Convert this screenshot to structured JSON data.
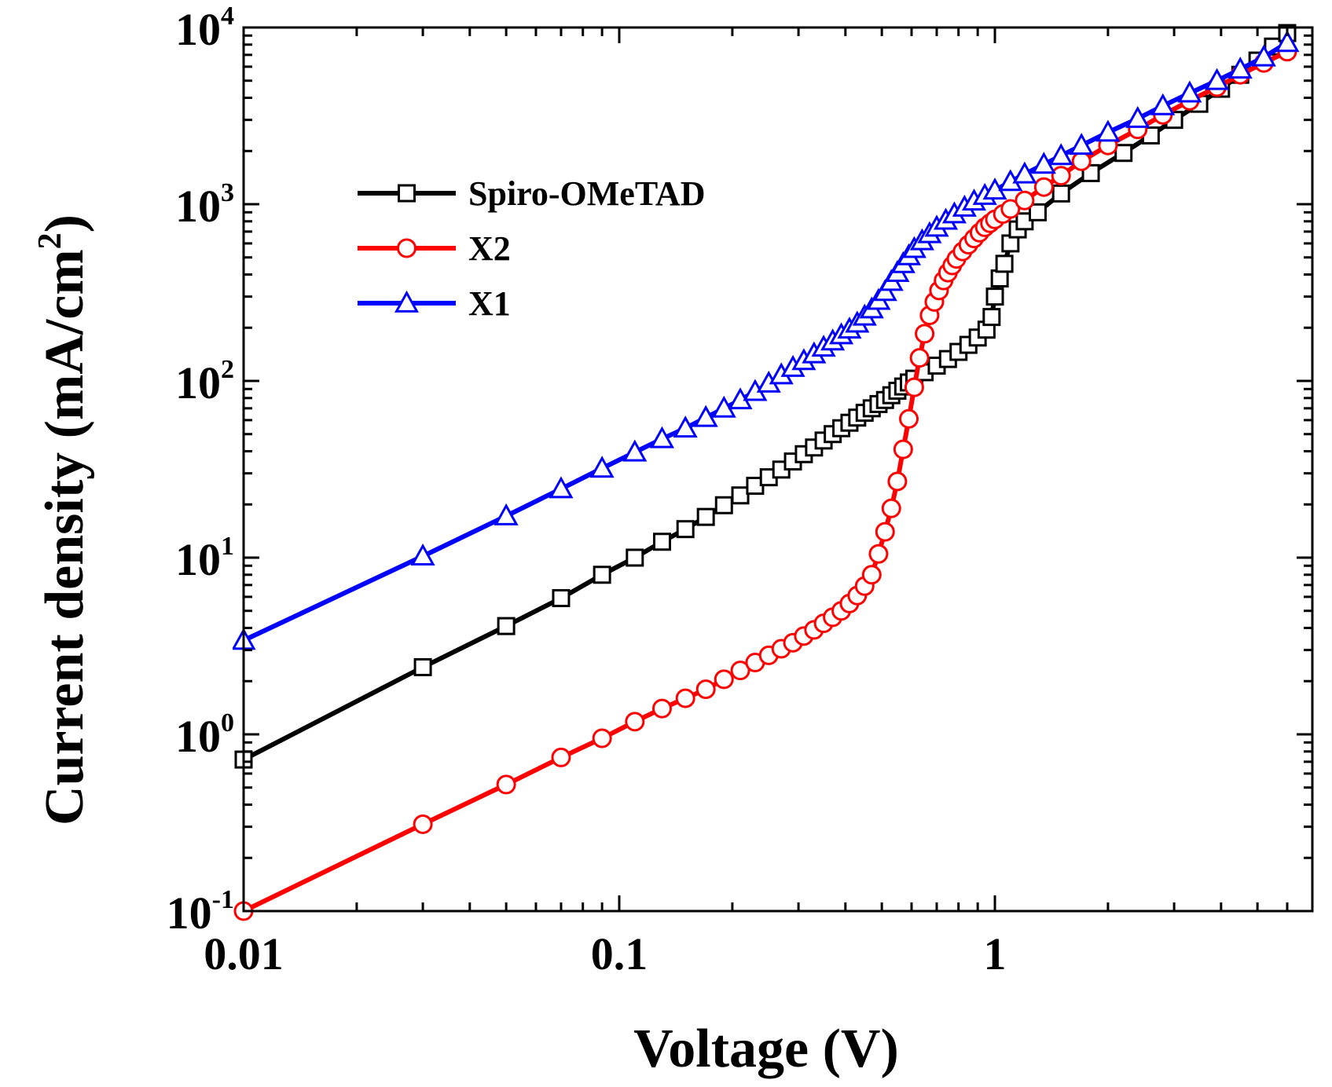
{
  "chart_data": {
    "type": "line",
    "title": "",
    "xlabel": "Voltage (V)",
    "ylabel": "Current density (mA/cm",
    "ylabel_sup": "2",
    "ylabel_end": ")",
    "xscale": "log",
    "yscale": "log",
    "xlim": [
      0.01,
      7
    ],
    "ylim": [
      0.1,
      10000
    ],
    "grid": false,
    "legend_position": "top-left",
    "x_ticks": [
      {
        "value": 0.01,
        "label": "0.01"
      },
      {
        "value": 0.1,
        "label": "0.1"
      },
      {
        "value": 1,
        "label": "1"
      }
    ],
    "y_ticks": [
      {
        "value": 0.1,
        "base": "10",
        "exp": "-1"
      },
      {
        "value": 1,
        "base": "10",
        "exp": "0"
      },
      {
        "value": 10,
        "base": "10",
        "exp": "1"
      },
      {
        "value": 100,
        "base": "10",
        "exp": "2"
      },
      {
        "value": 1000,
        "base": "10",
        "exp": "3"
      },
      {
        "value": 10000,
        "base": "10",
        "exp": "4"
      }
    ],
    "series": [
      {
        "name": "Spiro-OMeTAD",
        "color": "#000000",
        "marker": "square",
        "x": [
          0.01,
          0.03,
          0.05,
          0.07,
          0.09,
          0.11,
          0.13,
          0.15,
          0.17,
          0.19,
          0.21,
          0.23,
          0.25,
          0.27,
          0.29,
          0.31,
          0.33,
          0.35,
          0.37,
          0.39,
          0.41,
          0.43,
          0.45,
          0.47,
          0.49,
          0.51,
          0.53,
          0.55,
          0.57,
          0.59,
          0.61,
          0.65,
          0.7,
          0.75,
          0.8,
          0.85,
          0.9,
          0.95,
          0.98,
          1.0,
          1.03,
          1.06,
          1.1,
          1.15,
          1.2,
          1.3,
          1.5,
          1.8,
          2.2,
          2.6,
          3.0,
          3.5,
          4.0,
          4.5,
          5.0,
          5.5,
          6.0
        ],
        "y": [
          0.72,
          2.4,
          4.1,
          5.9,
          8.0,
          10,
          12.3,
          14.5,
          17,
          19.8,
          22.5,
          25.5,
          28.5,
          31.5,
          35,
          38.5,
          42,
          46,
          50,
          54,
          58,
          62,
          66,
          70,
          74,
          78,
          83,
          88,
          93,
          98,
          103,
          112,
          122,
          133,
          146,
          160,
          176,
          195,
          230,
          300,
          380,
          460,
          600,
          720,
          800,
          900,
          1150,
          1500,
          1950,
          2450,
          3000,
          3700,
          4500,
          5400,
          6500,
          7800,
          9300
        ]
      },
      {
        "name": "X2",
        "color": "#ff0000",
        "marker": "circle",
        "x": [
          0.01,
          0.03,
          0.05,
          0.07,
          0.09,
          0.11,
          0.13,
          0.15,
          0.17,
          0.19,
          0.21,
          0.23,
          0.25,
          0.27,
          0.29,
          0.31,
          0.33,
          0.35,
          0.37,
          0.39,
          0.41,
          0.43,
          0.45,
          0.47,
          0.49,
          0.51,
          0.53,
          0.55,
          0.57,
          0.59,
          0.61,
          0.63,
          0.65,
          0.67,
          0.69,
          0.71,
          0.73,
          0.75,
          0.77,
          0.79,
          0.82,
          0.85,
          0.88,
          0.91,
          0.94,
          0.97,
          1.0,
          1.05,
          1.1,
          1.2,
          1.35,
          1.5,
          1.7,
          2.0,
          2.4,
          2.8,
          3.3,
          3.9,
          4.5,
          5.2,
          6.0
        ],
        "y": [
          0.1,
          0.31,
          0.52,
          0.74,
          0.95,
          1.18,
          1.4,
          1.6,
          1.8,
          2.05,
          2.3,
          2.55,
          2.8,
          3.05,
          3.3,
          3.6,
          3.9,
          4.25,
          4.6,
          5.0,
          5.5,
          6.1,
          6.9,
          8.0,
          10.5,
          14,
          19,
          27,
          41,
          61,
          92,
          135,
          185,
          235,
          280,
          325,
          370,
          410,
          450,
          490,
          540,
          590,
          640,
          690,
          740,
          780,
          820,
          880,
          940,
          1050,
          1250,
          1450,
          1750,
          2150,
          2650,
          3200,
          3850,
          4600,
          5400,
          6300,
          7300
        ]
      },
      {
        "name": "X1",
        "color": "#0000ff",
        "marker": "triangle",
        "x": [
          0.01,
          0.03,
          0.05,
          0.07,
          0.09,
          0.11,
          0.13,
          0.15,
          0.17,
          0.19,
          0.21,
          0.23,
          0.25,
          0.27,
          0.29,
          0.31,
          0.33,
          0.35,
          0.37,
          0.39,
          0.41,
          0.43,
          0.45,
          0.47,
          0.49,
          0.51,
          0.53,
          0.55,
          0.57,
          0.59,
          0.61,
          0.64,
          0.67,
          0.7,
          0.74,
          0.78,
          0.83,
          0.88,
          0.94,
          1.0,
          1.1,
          1.2,
          1.35,
          1.5,
          1.7,
          2.0,
          2.4,
          2.8,
          3.3,
          3.9,
          4.5,
          5.2,
          6.0
        ],
        "y": [
          3.4,
          10.2,
          17.2,
          24.5,
          32,
          39.5,
          47,
          54,
          62,
          70,
          78,
          87,
          97,
          108,
          119,
          130,
          142,
          155,
          168,
          182,
          196,
          212,
          232,
          255,
          285,
          320,
          365,
          410,
          460,
          510,
          560,
          620,
          680,
          740,
          810,
          880,
          960,
          1040,
          1120,
          1200,
          1340,
          1480,
          1680,
          1880,
          2150,
          2550,
          3050,
          3600,
          4250,
          5000,
          5800,
          6800,
          8200
        ]
      }
    ]
  }
}
